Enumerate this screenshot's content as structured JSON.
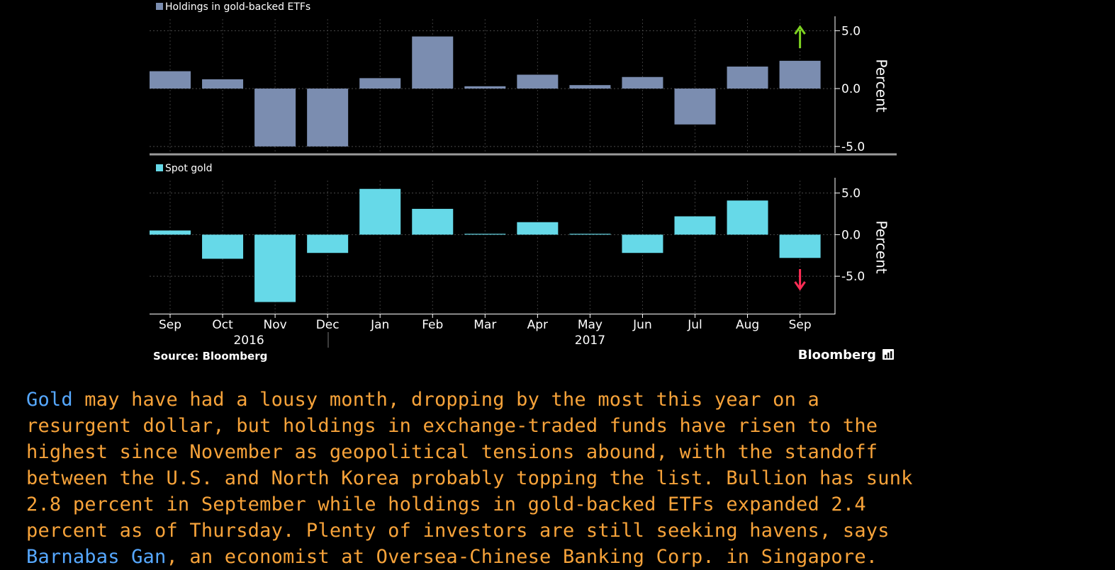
{
  "chart_data": [
    {
      "type": "bar",
      "legend": "Holdings in gold-backed ETFs",
      "ylabel": "Percent",
      "categories": [
        "Sep",
        "Oct",
        "Nov",
        "Dec",
        "Jan",
        "Feb",
        "Mar",
        "Apr",
        "May",
        "Jun",
        "Jul",
        "Aug",
        "Sep"
      ],
      "values": [
        1.5,
        0.8,
        -5.0,
        -5.0,
        0.9,
        4.5,
        0.2,
        1.2,
        0.3,
        1.0,
        -3.1,
        1.9,
        2.4
      ],
      "ylim": [
        -5.5,
        6.0
      ],
      "yticks": [
        5.0,
        0.0,
        -5.0
      ],
      "tick_labels": [
        "5.0",
        "0.0",
        "-5.0"
      ],
      "color": "#7b8db0",
      "annotation": {
        "type": "arrow-up",
        "category_index": 12,
        "color": "#7ed321"
      }
    },
    {
      "type": "bar",
      "legend": "Spot gold",
      "ylabel": "Percent",
      "categories": [
        "Sep",
        "Oct",
        "Nov",
        "Dec",
        "Jan",
        "Feb",
        "Mar",
        "Apr",
        "May",
        "Jun",
        "Jul",
        "Aug",
        "Sep"
      ],
      "values": [
        0.5,
        -2.9,
        -8.1,
        -2.2,
        5.5,
        3.1,
        0.1,
        1.5,
        0.1,
        -2.2,
        2.2,
        4.1,
        -2.8
      ],
      "ylim": [
        -9.5,
        6.5
      ],
      "yticks": [
        5.0,
        0.0,
        -5.0
      ],
      "tick_labels": [
        "5.0",
        "0.0",
        "-5.0"
      ],
      "color": "#66d9e8",
      "annotation": {
        "type": "arrow-down",
        "category_index": 12,
        "color": "#ff2d55"
      }
    }
  ],
  "xaxis": {
    "years": [
      {
        "label": "2016",
        "category_index": 1.5
      },
      {
        "label": "2017",
        "category_index": 8
      }
    ]
  },
  "grid": true,
  "source": "Source: Bloomberg",
  "brand": "Bloomberg",
  "article": {
    "link1": "Gold",
    "text1": " may have had a lousy month, dropping by the most this year on a",
    "text2": "resurgent dollar, but holdings in exchange-traded funds have risen to the",
    "text3": "highest since November as geopolitical tensions abound, with the standoff",
    "text4": "between the U.S. and North Korea probably topping the list. Bullion has sunk",
    "text5": "2.8 percent in September while holdings in gold-backed ETFs expanded 2.4",
    "text6": "percent as of Thursday. Plenty of investors are still seeking havens, says",
    "link2": "Barnabas Gan",
    "text7": ", an economist at Oversea-Chinese Banking Corp. in Singapore."
  },
  "colors": {
    "background": "#000000",
    "article_text": "#f7a33a",
    "link": "#56a8ff"
  }
}
